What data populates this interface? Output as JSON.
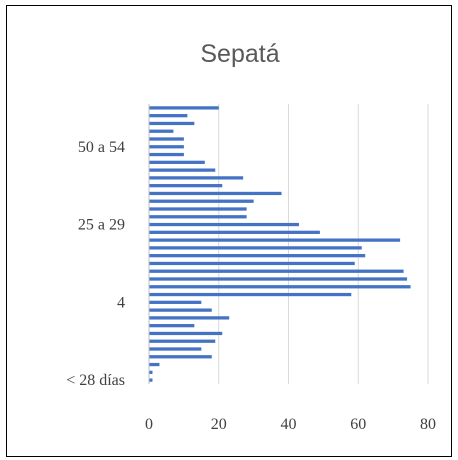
{
  "chart_data": {
    "type": "bar",
    "orientation": "horizontal",
    "title": "Sepatá",
    "xlabel": "",
    "ylabel": "",
    "xlim": [
      0,
      80
    ],
    "x_ticks": [
      0,
      20,
      40,
      60,
      80
    ],
    "grid": "vertical",
    "legend": "none",
    "bar_color": "#4472c4",
    "grid_color": "#d9d9d9",
    "category_tick_labels": [
      "< 28 días",
      "4",
      "25 a 29",
      "50 a 54"
    ],
    "values_top_to_bottom": [
      20,
      11,
      13,
      7,
      10,
      10,
      10,
      16,
      19,
      27,
      21,
      38,
      30,
      28,
      28,
      43,
      49,
      72,
      61,
      62,
      59,
      73,
      74,
      75,
      58,
      15,
      18,
      23,
      13,
      21,
      19,
      15,
      18,
      3,
      1,
      1
    ]
  }
}
